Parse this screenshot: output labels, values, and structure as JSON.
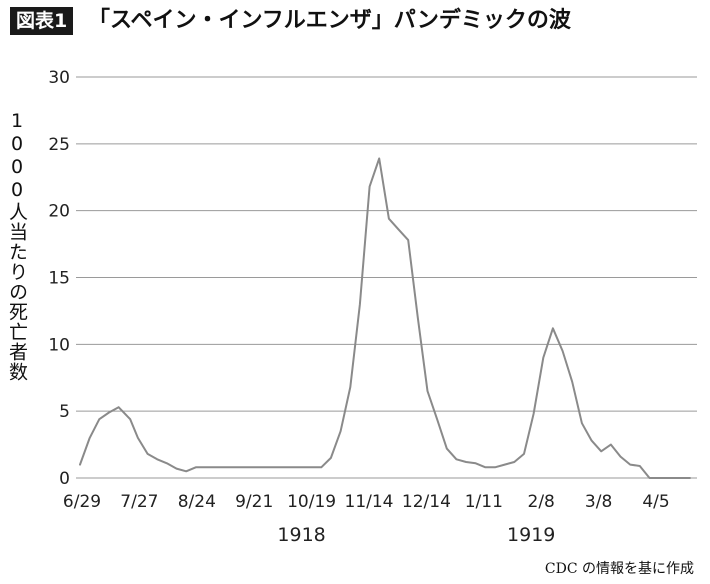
{
  "header": {
    "figure_label": "図表1",
    "title": "「スペイン・インフルエンザ」パンデミックの波"
  },
  "source": "CDC の情報を基に作成",
  "chart_data": {
    "type": "line",
    "title": "「スペイン・インフルエンザ」パンデミックの波",
    "ylabel": "1000人当たりの死亡者数",
    "xlabel": "",
    "ylim": [
      0,
      30
    ],
    "yticks": [
      0,
      5,
      10,
      15,
      20,
      25,
      30
    ],
    "grid": true,
    "line_color": "#8a8a8a",
    "grid_color": "#9a9a9a",
    "x_tick_labels": [
      "6/29",
      "7/27",
      "8/24",
      "9/21",
      "10/19",
      "11/14",
      "12/14",
      "1/11",
      "2/8",
      "3/8",
      "4/5"
    ],
    "year_labels": [
      {
        "label": "1918",
        "near_tick": "10/19"
      },
      {
        "label": "1919",
        "near_tick": "2/8"
      }
    ],
    "series": [
      {
        "x": [
          0,
          0.5,
          1,
          1.5,
          2,
          2.6,
          3.0,
          3.5,
          4,
          4.5,
          5,
          5.5,
          6,
          6.5,
          7,
          7.5,
          7.8,
          8,
          8.5,
          9,
          9.5,
          10,
          10.5,
          11,
          11.5,
          12,
          12.5,
          13,
          13.5,
          14,
          14.5,
          15,
          15.5,
          16,
          16.5,
          17,
          17.5,
          18,
          18.5,
          19,
          19.5,
          20,
          20.5,
          21,
          21.5,
          22,
          22.5,
          23,
          23.5,
          24,
          24.5,
          25,
          25.5,
          26,
          26.5,
          27,
          27.5,
          28,
          28.5,
          29,
          29.5,
          30,
          30.5,
          31,
          31.3,
          31.6
        ],
        "y": [
          1.0,
          3.0,
          4.4,
          4.9,
          5.3,
          4.4,
          3.0,
          1.8,
          1.4,
          1.1,
          0.7,
          0.5,
          0.8,
          0.8,
          0.8,
          0.8,
          0.8,
          0.8,
          0.8,
          0.8,
          0.8,
          0.8,
          0.8,
          0.8,
          0.8,
          0.8,
          0.8,
          1.5,
          3.5,
          6.8,
          13.0,
          21.8,
          23.9,
          19.4,
          18.6,
          17.8,
          12.0,
          6.5,
          4.4,
          2.2,
          1.4,
          1.2,
          1.1,
          0.8,
          0.8,
          1.0,
          1.2,
          1.8,
          4.8,
          9.0,
          11.2,
          9.5,
          7.2,
          4.1,
          2.8,
          2.0,
          2.5,
          1.6,
          1.0,
          0.9,
          0.0,
          0.0,
          0.0,
          0.0,
          0.0,
          0.0
        ]
      }
    ]
  }
}
